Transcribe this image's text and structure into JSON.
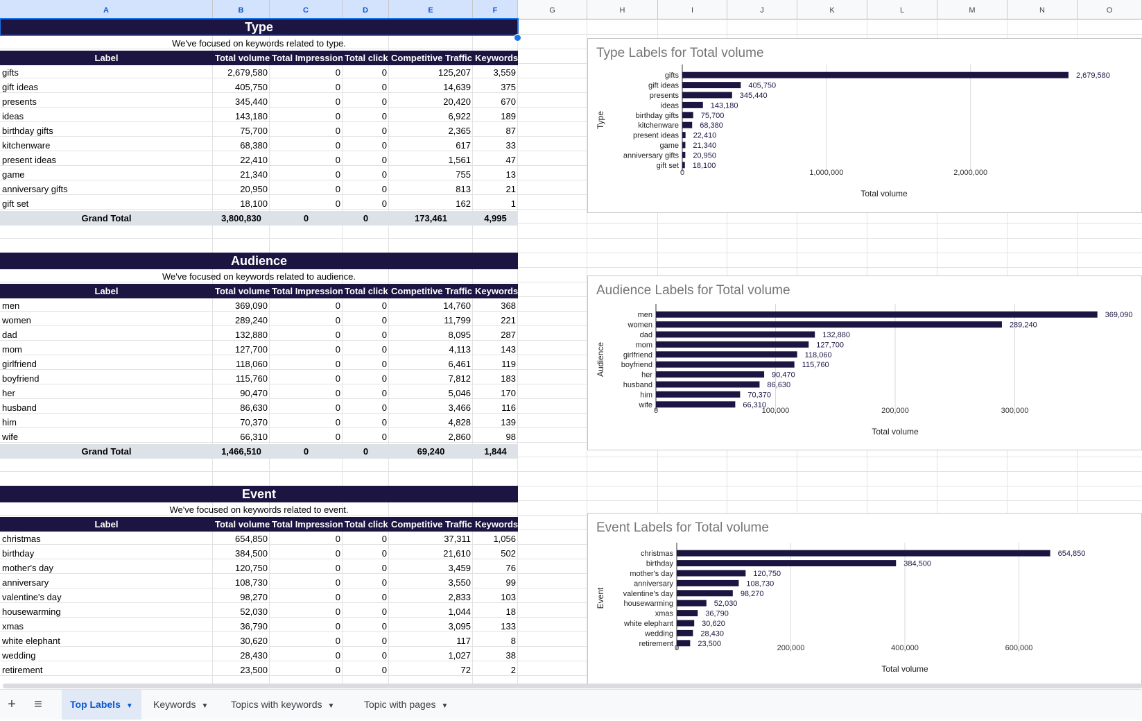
{
  "columns": [
    "A",
    "B",
    "C",
    "D",
    "E",
    "F",
    "G",
    "H",
    "I",
    "J",
    "K",
    "L",
    "M",
    "N",
    "O"
  ],
  "selected_columns": [
    "A",
    "B",
    "C",
    "D",
    "E",
    "F"
  ],
  "table_header": {
    "label": "Label",
    "total_volume": "Total volume",
    "total_impression": "Total Impression",
    "total_click": "Total click",
    "competitive_traffic": "Competitive Traffic",
    "keywords": "Keywords"
  },
  "sections": [
    {
      "title": "Type",
      "subtitle": "We've focused on keywords related to type.",
      "rows": [
        [
          "gifts",
          "2,679,580",
          "0",
          "0",
          "125,207",
          "3,559"
        ],
        [
          "gift ideas",
          "405,750",
          "0",
          "0",
          "14,639",
          "375"
        ],
        [
          "presents",
          "345,440",
          "0",
          "0",
          "20,420",
          "670"
        ],
        [
          "ideas",
          "143,180",
          "0",
          "0",
          "6,922",
          "189"
        ],
        [
          "birthday gifts",
          "75,700",
          "0",
          "0",
          "2,365",
          "87"
        ],
        [
          "kitchenware",
          "68,380",
          "0",
          "0",
          "617",
          "33"
        ],
        [
          "present ideas",
          "22,410",
          "0",
          "0",
          "1,561",
          "47"
        ],
        [
          "game",
          "21,340",
          "0",
          "0",
          "755",
          "13"
        ],
        [
          "anniversary gifts",
          "20,950",
          "0",
          "0",
          "813",
          "21"
        ],
        [
          "gift set",
          "18,100",
          "0",
          "0",
          "162",
          "1"
        ]
      ],
      "total": [
        "Grand Total",
        "3,800,830",
        "0",
        "0",
        "173,461",
        "4,995"
      ]
    },
    {
      "title": "Audience",
      "subtitle": "We've focused on keywords related to audience.",
      "rows": [
        [
          "men",
          "369,090",
          "0",
          "0",
          "14,760",
          "368"
        ],
        [
          "women",
          "289,240",
          "0",
          "0",
          "11,799",
          "221"
        ],
        [
          "dad",
          "132,880",
          "0",
          "0",
          "8,095",
          "287"
        ],
        [
          "mom",
          "127,700",
          "0",
          "0",
          "4,113",
          "143"
        ],
        [
          "girlfriend",
          "118,060",
          "0",
          "0",
          "6,461",
          "119"
        ],
        [
          "boyfriend",
          "115,760",
          "0",
          "0",
          "7,812",
          "183"
        ],
        [
          "her",
          "90,470",
          "0",
          "0",
          "5,046",
          "170"
        ],
        [
          "husband",
          "86,630",
          "0",
          "0",
          "3,466",
          "116"
        ],
        [
          "him",
          "70,370",
          "0",
          "0",
          "4,828",
          "139"
        ],
        [
          "wife",
          "66,310",
          "0",
          "0",
          "2,860",
          "98"
        ]
      ],
      "total": [
        "Grand Total",
        "1,466,510",
        "0",
        "0",
        "69,240",
        "1,844"
      ]
    },
    {
      "title": "Event",
      "subtitle": "We've focused on keywords related to event.",
      "rows": [
        [
          "christmas",
          "654,850",
          "0",
          "0",
          "37,311",
          "1,056"
        ],
        [
          "birthday",
          "384,500",
          "0",
          "0",
          "21,610",
          "502"
        ],
        [
          "mother's day",
          "120,750",
          "0",
          "0",
          "3,459",
          "76"
        ],
        [
          "anniversary",
          "108,730",
          "0",
          "0",
          "3,550",
          "99"
        ],
        [
          "valentine's day",
          "98,270",
          "0",
          "0",
          "2,833",
          "103"
        ],
        [
          "housewarming",
          "52,030",
          "0",
          "0",
          "1,044",
          "18"
        ],
        [
          "xmas",
          "36,790",
          "0",
          "0",
          "3,095",
          "133"
        ],
        [
          "white elephant",
          "30,620",
          "0",
          "0",
          "117",
          "8"
        ],
        [
          "wedding",
          "28,430",
          "0",
          "0",
          "1,027",
          "38"
        ],
        [
          "retirement",
          "23,500",
          "0",
          "0",
          "72",
          "2"
        ]
      ]
    }
  ],
  "chart_data": [
    {
      "type": "bar",
      "orientation": "horizontal",
      "title": "Type Labels for Total volume",
      "ylabel": "Type",
      "xlabel": "Total volume",
      "categories": [
        "gifts",
        "gift ideas",
        "presents",
        "ideas",
        "birthday gifts",
        "kitchenware",
        "present ideas",
        "game",
        "anniversary gifts",
        "gift set"
      ],
      "values": [
        2679580,
        405750,
        345440,
        143180,
        75700,
        68380,
        22410,
        21340,
        20950,
        18100
      ],
      "value_labels": [
        "2,679,580",
        "405,750",
        "345,440",
        "143,180",
        "75,700",
        "68,380",
        "22,410",
        "21,340",
        "20,950",
        "18,100"
      ],
      "xlim": [
        0,
        2800000
      ],
      "xticks": [
        0,
        1000000,
        2000000
      ],
      "xtick_labels": [
        "0",
        "1,000,000",
        "2,000,000"
      ],
      "color": "#1c1542",
      "grid": true,
      "legend": "none"
    },
    {
      "type": "bar",
      "orientation": "horizontal",
      "title": "Audience Labels for Total volume",
      "ylabel": "Audience",
      "xlabel": "Total volume",
      "categories": [
        "men",
        "women",
        "dad",
        "mom",
        "girlfriend",
        "boyfriend",
        "her",
        "husband",
        "him",
        "wife"
      ],
      "values": [
        369090,
        289240,
        132880,
        127700,
        118060,
        115760,
        90470,
        86630,
        70370,
        66310
      ],
      "value_labels": [
        "369,090",
        "289,240",
        "132,880",
        "127,700",
        "118,060",
        "115,760",
        "90,470",
        "86,630",
        "70,370",
        "66,310"
      ],
      "xlim": [
        0,
        400000
      ],
      "xticks": [
        0,
        100000,
        200000,
        300000
      ],
      "xtick_labels": [
        "0",
        "100,000",
        "200,000",
        "300,000"
      ],
      "color": "#1c1542",
      "grid": true,
      "legend": "none"
    },
    {
      "type": "bar",
      "orientation": "horizontal",
      "title": "Event Labels for Total volume",
      "ylabel": "Event",
      "xlabel": "Total volume",
      "categories": [
        "christmas",
        "birthday",
        "mother's day",
        "anniversary",
        "valentine's day",
        "housewarming",
        "xmas",
        "white elephant",
        "wedding",
        "retirement"
      ],
      "values": [
        654850,
        384500,
        120750,
        108730,
        98270,
        52030,
        36790,
        30620,
        28430,
        23500
      ],
      "value_labels": [
        "654,850",
        "384,500",
        "120,750",
        "108,730",
        "98,270",
        "52,030",
        "36,790",
        "30,620",
        "28,430",
        "23,500"
      ],
      "xlim": [
        0,
        800000
      ],
      "xticks": [
        0,
        200000,
        400000,
        600000
      ],
      "xtick_labels": [
        "0",
        "200,000",
        "400,000",
        "600,000"
      ],
      "color": "#1c1542",
      "grid": true,
      "legend": "none"
    }
  ],
  "sheet_tabs": {
    "add_icon": "plus-icon",
    "list_icon": "menu-icon",
    "tabs": [
      "Top Labels",
      "Keywords",
      "Topics with keywords",
      "Topic with pages"
    ],
    "active": "Top Labels"
  }
}
